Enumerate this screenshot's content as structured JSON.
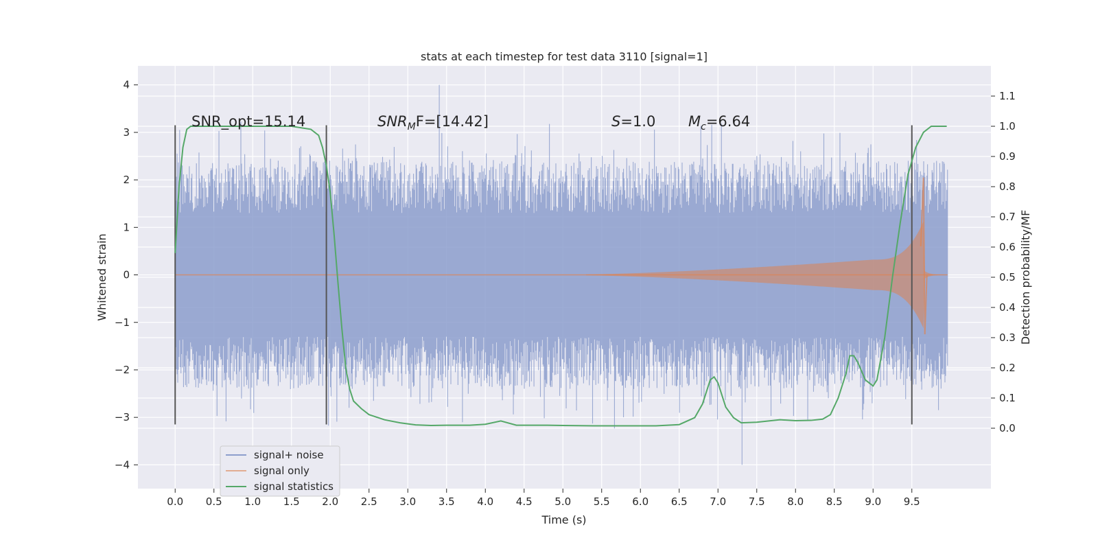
{
  "chart_data": {
    "type": "line",
    "title": "stats at each timestep for test data 3110 [signal=1]",
    "xlabel": "Time (s)",
    "ylabel": "Whitened strain",
    "y2label": "Detection probability/MF",
    "xlim": [
      -0.48,
      10.52
    ],
    "ylim": [
      -4.5,
      4.4
    ],
    "y2lim": [
      -0.2,
      1.2
    ],
    "xticks": [
      "0.0",
      "0.5",
      "1.0",
      "1.5",
      "2.0",
      "2.5",
      "3.0",
      "3.5",
      "4.0",
      "4.5",
      "5.0",
      "5.5",
      "6.0",
      "6.5",
      "7.0",
      "7.5",
      "8.0",
      "8.5",
      "9.0",
      "9.5"
    ],
    "yticks": [
      "4",
      "3",
      "2",
      "1",
      "0",
      "−1",
      "−2",
      "−3",
      "−4"
    ],
    "y2ticks": [
      "0.0",
      "0.1",
      "0.2",
      "0.3",
      "0.4",
      "0.5",
      "0.6",
      "0.7",
      "0.8",
      "0.9",
      "1.0",
      "1.1"
    ],
    "grid": true,
    "legend_position": "lower-left",
    "annotations": {
      "snr_opt": "SNR_opt=15.14",
      "snr_mf_sym": "SNR",
      "snr_mf_sub": "M",
      "snr_mf_val": "F=[14.42]",
      "s_sym": "S",
      "s_val": "=1.0",
      "mc_sym": "M",
      "mc_sub": "c",
      "mc_val": "=6.64"
    },
    "window_markers_x": [
      0.0,
      1.95,
      9.5
    ],
    "window_marker_range_y": [
      -3.15,
      3.15
    ],
    "series": [
      {
        "name": "signal+ noise",
        "color": "#8c9ecc",
        "kind": "noise",
        "x_range": [
          0.0,
          9.96
        ],
        "envelope_abs": 2.3,
        "peak_max": 4.0
      },
      {
        "name": "signal only",
        "color": "#dd8452",
        "kind": "chirp",
        "x_range": [
          0.0,
          9.96
        ],
        "onset_x": 5.3,
        "amplitude_at_9_0": 0.32,
        "peak_x": 9.65,
        "peak_value": 2.05
      },
      {
        "name": "signal statistics",
        "color": "#55a868",
        "kind": "line",
        "axis": "right",
        "x": [
          0.0,
          0.05,
          0.1,
          0.15,
          0.2,
          0.3,
          0.5,
          0.8,
          1.2,
          1.5,
          1.75,
          1.85,
          1.9,
          1.95,
          2.0,
          2.05,
          2.1,
          2.15,
          2.2,
          2.25,
          2.3,
          2.4,
          2.5,
          2.7,
          2.9,
          3.1,
          3.3,
          3.5,
          3.8,
          4.0,
          4.2,
          4.4,
          4.6,
          4.8,
          5.0,
          5.4,
          5.8,
          6.2,
          6.5,
          6.7,
          6.8,
          6.9,
          6.95,
          7.0,
          7.05,
          7.1,
          7.2,
          7.3,
          7.5,
          7.8,
          8.0,
          8.2,
          8.35,
          8.45,
          8.55,
          8.65,
          8.7,
          8.75,
          8.8,
          8.9,
          9.0,
          9.05,
          9.15,
          9.25,
          9.35,
          9.45,
          9.55,
          9.65,
          9.75,
          9.85,
          9.95
        ],
        "y": [
          0.58,
          0.8,
          0.93,
          0.99,
          1.0,
          1.0,
          1.0,
          1.0,
          1.0,
          1.0,
          0.99,
          0.97,
          0.93,
          0.87,
          0.78,
          0.64,
          0.48,
          0.33,
          0.2,
          0.13,
          0.09,
          0.065,
          0.045,
          0.028,
          0.018,
          0.011,
          0.009,
          0.01,
          0.01,
          0.013,
          0.024,
          0.01,
          0.01,
          0.01,
          0.009,
          0.008,
          0.008,
          0.008,
          0.012,
          0.035,
          0.08,
          0.16,
          0.17,
          0.15,
          0.11,
          0.07,
          0.035,
          0.018,
          0.02,
          0.028,
          0.025,
          0.026,
          0.03,
          0.045,
          0.1,
          0.18,
          0.24,
          0.24,
          0.22,
          0.16,
          0.14,
          0.16,
          0.3,
          0.5,
          0.68,
          0.84,
          0.93,
          0.98,
          1.0,
          1.0,
          1.0
        ]
      }
    ]
  }
}
